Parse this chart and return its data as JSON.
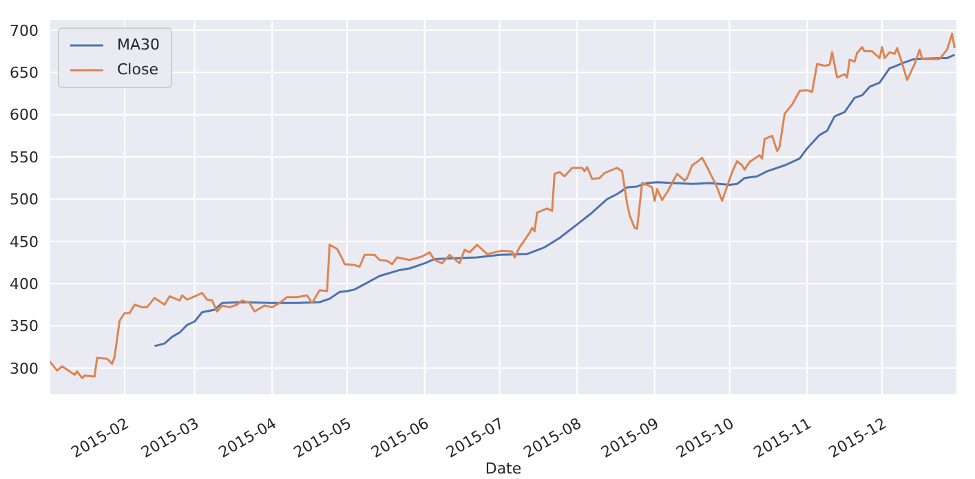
{
  "chart_data": {
    "type": "line",
    "xlabel": "Date",
    "xlim": [
      "2015-01-02",
      "2015-12-31"
    ],
    "xticks": [
      {
        "value": "2015-02-01",
        "label": "2015-02"
      },
      {
        "value": "2015-03-01",
        "label": "2015-03"
      },
      {
        "value": "2015-04-01",
        "label": "2015-04"
      },
      {
        "value": "2015-05-01",
        "label": "2015-05"
      },
      {
        "value": "2015-06-01",
        "label": "2015-06"
      },
      {
        "value": "2015-07-01",
        "label": "2015-07"
      },
      {
        "value": "2015-08-01",
        "label": "2015-08"
      },
      {
        "value": "2015-09-01",
        "label": "2015-09"
      },
      {
        "value": "2015-10-01",
        "label": "2015-10"
      },
      {
        "value": "2015-11-01",
        "label": "2015-11"
      },
      {
        "value": "2015-12-01",
        "label": "2015-12"
      }
    ],
    "ylim": [
      268,
      713
    ],
    "yticks": [
      300,
      350,
      400,
      450,
      500,
      550,
      600,
      650,
      700
    ],
    "grid": true,
    "legend": "top left",
    "marker": "none",
    "line_style": "solid",
    "series": [
      {
        "name": "MA30",
        "color": "#4c72b0",
        "x": [
          "2015-02-13",
          "2015-02-17",
          "2015-02-20",
          "2015-02-23",
          "2015-02-26",
          "2015-03-01",
          "2015-03-04",
          "2015-03-09",
          "2015-03-12",
          "2015-03-20",
          "2015-04-01",
          "2015-04-11",
          "2015-04-20",
          "2015-04-24",
          "2015-04-28",
          "2015-05-01",
          "2015-05-04",
          "2015-05-09",
          "2015-05-14",
          "2015-05-22",
          "2015-05-26",
          "2015-06-01",
          "2015-06-05",
          "2015-06-13",
          "2015-06-22",
          "2015-07-01",
          "2015-07-12",
          "2015-07-19",
          "2015-07-25",
          "2015-08-01",
          "2015-08-07",
          "2015-08-13",
          "2015-08-17",
          "2015-08-21",
          "2015-08-25",
          "2015-08-29",
          "2015-09-02",
          "2015-09-16",
          "2015-09-23",
          "2015-10-01",
          "2015-10-04",
          "2015-10-07",
          "2015-10-12",
          "2015-10-16",
          "2015-10-23",
          "2015-10-29",
          "2015-11-01",
          "2015-11-06",
          "2015-11-09",
          "2015-11-12",
          "2015-11-16",
          "2015-11-20",
          "2015-11-23",
          "2015-11-26",
          "2015-11-30",
          "2015-12-04",
          "2015-12-06",
          "2015-12-10",
          "2015-12-14",
          "2015-12-24",
          "2015-12-27",
          "2015-12-30"
        ],
        "values": [
          326,
          329,
          337,
          342,
          351,
          355,
          366,
          369,
          377,
          378,
          377,
          377,
          378,
          382,
          390,
          391,
          393,
          401,
          409,
          416,
          418,
          424,
          429,
          430,
          431,
          434,
          435,
          443,
          454,
          470,
          484,
          500,
          506,
          514,
          515,
          519,
          520,
          518,
          519,
          517,
          518,
          525,
          527,
          533,
          540,
          548,
          560,
          576,
          581,
          598,
          603,
          620,
          623,
          633,
          638,
          655,
          657,
          662,
          666,
          667,
          667,
          671
        ]
      },
      {
        "name": "Close",
        "color": "#dd8452",
        "x": [
          "2015-01-02",
          "2015-01-05",
          "2015-01-07",
          "2015-01-12",
          "2015-01-13",
          "2015-01-15",
          "2015-01-16",
          "2015-01-20",
          "2015-01-21",
          "2015-01-25",
          "2015-01-27",
          "2015-01-28",
          "2015-01-30",
          "2015-02-01",
          "2015-02-03",
          "2015-02-05",
          "2015-02-08",
          "2015-02-10",
          "2015-02-13",
          "2015-02-17",
          "2015-02-19",
          "2015-02-23",
          "2015-02-24",
          "2015-02-26",
          "2015-03-02",
          "2015-03-04",
          "2015-03-06",
          "2015-03-08",
          "2015-03-10",
          "2015-03-12",
          "2015-03-15",
          "2015-03-18",
          "2015-03-20",
          "2015-03-23",
          "2015-03-25",
          "2015-03-29",
          "2015-04-01",
          "2015-04-04",
          "2015-04-07",
          "2015-04-11",
          "2015-04-15",
          "2015-04-17",
          "2015-04-20",
          "2015-04-23",
          "2015-04-24",
          "2015-04-27",
          "2015-04-29",
          "2015-04-30",
          "2015-05-04",
          "2015-05-06",
          "2015-05-08",
          "2015-05-12",
          "2015-05-14",
          "2015-05-17",
          "2015-05-19",
          "2015-05-21",
          "2015-05-26",
          "2015-05-31",
          "2015-06-03",
          "2015-06-05",
          "2015-06-08",
          "2015-06-11",
          "2015-06-15",
          "2015-06-17",
          "2015-06-19",
          "2015-06-22",
          "2015-06-26",
          "2015-06-29",
          "2015-07-02",
          "2015-07-06",
          "2015-07-07",
          "2015-07-09",
          "2015-07-13",
          "2015-07-14",
          "2015-07-15",
          "2015-07-16",
          "2015-07-20",
          "2015-07-22",
          "2015-07-23",
          "2015-07-25",
          "2015-07-27",
          "2015-07-30",
          "2015-08-03",
          "2015-08-04",
          "2015-08-05",
          "2015-08-07",
          "2015-08-10",
          "2015-08-12",
          "2015-08-17",
          "2015-08-19",
          "2015-08-21",
          "2015-08-22",
          "2015-08-24",
          "2015-08-25",
          "2015-08-27",
          "2015-08-29",
          "2015-08-31",
          "2015-09-01",
          "2015-09-02",
          "2015-09-04",
          "2015-09-06",
          "2015-09-10",
          "2015-09-13",
          "2015-09-14",
          "2015-09-16",
          "2015-09-18",
          "2015-09-20",
          "2015-09-22",
          "2015-09-23",
          "2015-09-26",
          "2015-09-28",
          "2015-10-02",
          "2015-10-04",
          "2015-10-06",
          "2015-10-07",
          "2015-10-09",
          "2015-10-13",
          "2015-10-14",
          "2015-10-15",
          "2015-10-18",
          "2015-10-20",
          "2015-10-21",
          "2015-10-23",
          "2015-10-26",
          "2015-10-29",
          "2015-11-01",
          "2015-11-03",
          "2015-11-05",
          "2015-11-08",
          "2015-11-10",
          "2015-11-11",
          "2015-11-13",
          "2015-11-16",
          "2015-11-17",
          "2015-11-18",
          "2015-11-20",
          "2015-11-21",
          "2015-11-23",
          "2015-11-24",
          "2015-11-27",
          "2015-11-30",
          "2015-12-01",
          "2015-12-02",
          "2015-12-04",
          "2015-12-06",
          "2015-12-07",
          "2015-12-09",
          "2015-12-11",
          "2015-12-14",
          "2015-12-16",
          "2015-12-17",
          "2015-12-21",
          "2015-12-24",
          "2015-12-27",
          "2015-12-29",
          "2015-12-30"
        ],
        "values": [
          308,
          297,
          302,
          292,
          296,
          288,
          291,
          290,
          312,
          311,
          305,
          313,
          356,
          365,
          365,
          375,
          372,
          372,
          383,
          375,
          385,
          380,
          386,
          381,
          386,
          389,
          381,
          380,
          367,
          374,
          372,
          375,
          380,
          377,
          367,
          374,
          372,
          377,
          384,
          384,
          386,
          377,
          392,
          391,
          446,
          441,
          430,
          423,
          422,
          420,
          434,
          434,
          428,
          427,
          423,
          431,
          428,
          432,
          437,
          428,
          424,
          434,
          424,
          440,
          437,
          446,
          435,
          437,
          439,
          438,
          431,
          443,
          460,
          466,
          462,
          484,
          489,
          486,
          530,
          532,
          527,
          537,
          537,
          533,
          538,
          524,
          525,
          531,
          537,
          533,
          495,
          481,
          466,
          465,
          519,
          517,
          514,
          498,
          512,
          499,
          508,
          530,
          522,
          525,
          540,
          544,
          549,
          538,
          532,
          514,
          498,
          532,
          545,
          540,
          535,
          544,
          552,
          548,
          571,
          575,
          557,
          562,
          601,
          612,
          628,
          629,
          627,
          660,
          658,
          659,
          674,
          644,
          648,
          644,
          665,
          663,
          673,
          680,
          675,
          675,
          667,
          680,
          667,
          674,
          672,
          679,
          661,
          641,
          660,
          677,
          666,
          666,
          666,
          677,
          696,
          679
        ]
      }
    ]
  }
}
